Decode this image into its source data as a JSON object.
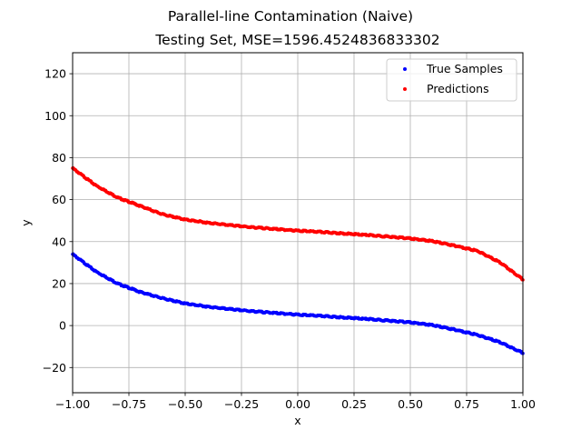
{
  "chart_data": {
    "type": "scatter",
    "title": "Parallel-line Contamination (Naive)",
    "subtitle": "Testing Set, MSE=1596.4524836833302",
    "xlabel": "x",
    "ylabel": "y",
    "xlim": [
      -1.0,
      1.0
    ],
    "ylim": [
      -32,
      130
    ],
    "grid": true,
    "legend_position": "top-right",
    "x_ticks": [
      -1.0,
      -0.75,
      -0.5,
      -0.25,
      0.0,
      0.25,
      0.5,
      0.75,
      1.0
    ],
    "x_tick_labels": [
      "−1.00",
      "−0.75",
      "−0.50",
      "−0.25",
      "0.00",
      "0.25",
      "0.50",
      "0.75",
      "1.00"
    ],
    "y_ticks": [
      -20,
      0,
      20,
      40,
      60,
      80,
      100,
      120
    ],
    "y_tick_labels": [
      "−20",
      "0",
      "20",
      "40",
      "60",
      "80",
      "100",
      "120"
    ],
    "series": [
      {
        "name": "True Samples",
        "color": "#0000ff",
        "x": [
          -1.0,
          -0.9,
          -0.8,
          -0.7,
          -0.6,
          -0.5,
          -0.4,
          -0.3,
          -0.2,
          -0.1,
          0.0,
          0.1,
          0.2,
          0.3,
          0.4,
          0.5,
          0.6,
          0.7,
          0.8,
          0.9,
          1.0
        ],
        "y": [
          34,
          26,
          20,
          16,
          13,
          10.5,
          9,
          7.8,
          6.8,
          6,
          5.2,
          4.6,
          3.9,
          3.2,
          2.4,
          1.5,
          0.2,
          -2,
          -4.5,
          -8,
          -13
        ]
      },
      {
        "name": "Predictions",
        "color": "#ff0000",
        "x": [
          -1.0,
          -0.9,
          -0.8,
          -0.7,
          -0.6,
          -0.5,
          -0.4,
          -0.3,
          -0.2,
          -0.1,
          0.0,
          0.1,
          0.2,
          0.3,
          0.4,
          0.5,
          0.6,
          0.7,
          0.8,
          0.9,
          1.0
        ],
        "y": [
          75,
          67,
          61,
          57,
          53,
          50.5,
          49,
          47.8,
          46.8,
          46,
          45.2,
          44.6,
          43.9,
          43.2,
          42.4,
          41.5,
          40.2,
          38,
          35.5,
          30,
          22
        ]
      }
    ]
  }
}
